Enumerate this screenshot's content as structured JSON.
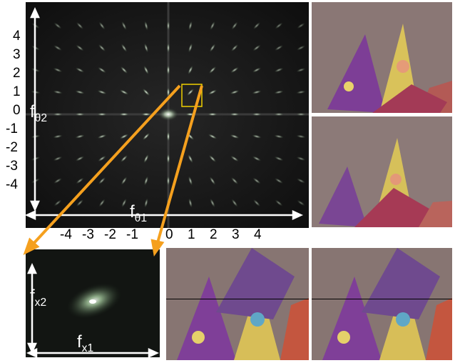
{
  "main_plot": {
    "x_axis_label": "f",
    "x_axis_sub": "θ1",
    "y_axis_label": "f",
    "y_axis_sub": "θ2",
    "x_ticks": [
      "-4",
      "-3",
      "-2",
      "-1",
      "0",
      "1",
      "2",
      "3",
      "4"
    ],
    "y_ticks": [
      "4",
      "3",
      "2",
      "1",
      "0",
      "-1",
      "-2",
      "-3",
      "-4"
    ]
  },
  "zoom_plot": {
    "x_axis_label": "f",
    "x_axis_sub": "x1",
    "y_axis_label": "f",
    "y_axis_sub": "x2"
  },
  "colors": {
    "arrow": "#f5a01e",
    "zoom_box": "#f0d000",
    "spectrum_bg": "#101010",
    "axis_white": "#ffffff"
  }
}
